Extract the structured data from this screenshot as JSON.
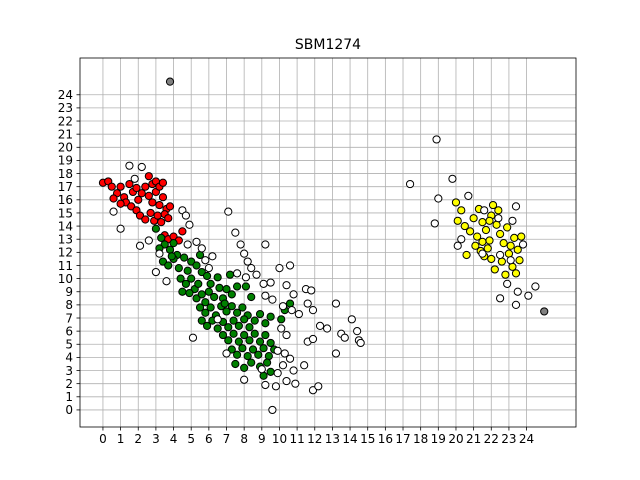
{
  "chart_data": {
    "type": "scatter",
    "title": "SBM1274",
    "xlabel": "",
    "ylabel": "",
    "xlim": [
      -1.3,
      26.8
    ],
    "ylim": [
      -1.3,
      26.8
    ],
    "xticks": [
      "0",
      "1",
      "2",
      "3",
      "4",
      "5",
      "6",
      "7",
      "8",
      "9",
      "10",
      "11",
      "12",
      "13",
      "14",
      "15",
      "16",
      "17",
      "18",
      "19",
      "20",
      "21",
      "22",
      "23",
      "24"
    ],
    "yticks": [
      "0",
      "1",
      "2",
      "3",
      "4",
      "5",
      "6",
      "7",
      "8",
      "9",
      "10",
      "11",
      "12",
      "13",
      "14",
      "15",
      "16",
      "17",
      "18",
      "19",
      "20",
      "21",
      "22",
      "23",
      "24"
    ],
    "grid": true,
    "colors": {
      "red": "#ff0000",
      "green": "#008000",
      "yellow": "#ffff00",
      "white": "#ffffff",
      "gray": "#808080",
      "edge": "#000000",
      "grid": "#b0b0b0"
    },
    "series": [
      {
        "color": "red",
        "points": [
          [
            0,
            17.3
          ],
          [
            0.3,
            17.4
          ],
          [
            0.5,
            17
          ],
          [
            0.8,
            16.5
          ],
          [
            1,
            17
          ],
          [
            1.2,
            16.2
          ],
          [
            1.5,
            17.2
          ],
          [
            1.7,
            16.6
          ],
          [
            1.3,
            15.8
          ],
          [
            1.6,
            15.5
          ],
          [
            1.9,
            15.2
          ],
          [
            2,
            16
          ],
          [
            2.2,
            16.5
          ],
          [
            2.4,
            17
          ],
          [
            2.6,
            16.3
          ],
          [
            2.8,
            15.8
          ],
          [
            3,
            16.6
          ],
          [
            3.2,
            15.6
          ],
          [
            3.4,
            16.2
          ],
          [
            3.6,
            15.3
          ],
          [
            3.8,
            15.5
          ],
          [
            2.1,
            14.8
          ],
          [
            2.4,
            14.5
          ],
          [
            2.7,
            15
          ],
          [
            2.9,
            14.4
          ],
          [
            3.1,
            14.8
          ],
          [
            3.3,
            14.3
          ],
          [
            3.5,
            14.9
          ],
          [
            3.7,
            14.6
          ],
          [
            2.8,
            17.2
          ],
          [
            3,
            17.4
          ],
          [
            3.2,
            17
          ],
          [
            2.6,
            17.8
          ],
          [
            3.4,
            17.3
          ],
          [
            1.9,
            16.9
          ],
          [
            1,
            15.7
          ],
          [
            0.6,
            16.1
          ],
          [
            3.5,
            13.3
          ],
          [
            3.7,
            13
          ],
          [
            4,
            13.2
          ],
          [
            4.3,
            12.9
          ],
          [
            4.5,
            13.6
          ]
        ]
      },
      {
        "color": "green",
        "points": [
          [
            3,
            13.8
          ],
          [
            3.3,
            13.1
          ],
          [
            3.5,
            12.6
          ],
          [
            3.8,
            12.2
          ],
          [
            4,
            12.7
          ],
          [
            4.2,
            11.8
          ],
          [
            3.4,
            11.3
          ],
          [
            3.7,
            11
          ],
          [
            4,
            11.5
          ],
          [
            4.3,
            10.8
          ],
          [
            4.6,
            11.6
          ],
          [
            4.8,
            10.6
          ],
          [
            5,
            11.3
          ],
          [
            5.3,
            11
          ],
          [
            5.5,
            11.8
          ],
          [
            4.4,
            10
          ],
          [
            4.7,
            9.6
          ],
          [
            5,
            10
          ],
          [
            5.2,
            9.2
          ],
          [
            5.4,
            9.6
          ],
          [
            5.6,
            10.5
          ],
          [
            5.9,
            10.2
          ],
          [
            6.1,
            9.6
          ],
          [
            4.5,
            9
          ],
          [
            4.9,
            8.9
          ],
          [
            5.3,
            8.5
          ],
          [
            5.6,
            8.8
          ],
          [
            5.8,
            8.2
          ],
          [
            6,
            9
          ],
          [
            6.3,
            8.6
          ],
          [
            6.6,
            9.3
          ],
          [
            6.8,
            8.5
          ],
          [
            7,
            9.2
          ],
          [
            7.3,
            8.8
          ],
          [
            7.6,
            9.4
          ],
          [
            5.5,
            7.8
          ],
          [
            5.8,
            7.4
          ],
          [
            6.1,
            7.8
          ],
          [
            6.4,
            7.2
          ],
          [
            6.7,
            7.9
          ],
          [
            7,
            7.5
          ],
          [
            7.3,
            7.9
          ],
          [
            7.6,
            7.4
          ],
          [
            7.9,
            7.8
          ],
          [
            8.2,
            7.2
          ],
          [
            5.6,
            6.8
          ],
          [
            5.9,
            6.4
          ],
          [
            6.2,
            6.8
          ],
          [
            6.5,
            6.2
          ],
          [
            6.8,
            6.7
          ],
          [
            7.1,
            6.3
          ],
          [
            7.4,
            6.8
          ],
          [
            7.7,
            6.4
          ],
          [
            8,
            6.9
          ],
          [
            8.3,
            6.3
          ],
          [
            8.6,
            6.8
          ],
          [
            8.9,
            7.3
          ],
          [
            9.2,
            6.6
          ],
          [
            9.5,
            7.1
          ],
          [
            6.8,
            5.7
          ],
          [
            7.1,
            5.3
          ],
          [
            7.4,
            5.8
          ],
          [
            7.7,
            5.2
          ],
          [
            8,
            5.7
          ],
          [
            8.3,
            5.3
          ],
          [
            8.6,
            5.8
          ],
          [
            8.9,
            5.2
          ],
          [
            9.2,
            5.7
          ],
          [
            9.5,
            5.1
          ],
          [
            7.3,
            4.6
          ],
          [
            7.6,
            4.2
          ],
          [
            7.9,
            4.7
          ],
          [
            8.2,
            4.1
          ],
          [
            8.5,
            4.6
          ],
          [
            8.8,
            4.2
          ],
          [
            9.1,
            4.7
          ],
          [
            9.4,
            4.1
          ],
          [
            9.7,
            4.6
          ],
          [
            7.5,
            3.5
          ],
          [
            8,
            3.2
          ],
          [
            8.4,
            3.6
          ],
          [
            8.9,
            3.3
          ],
          [
            9.3,
            3.6
          ],
          [
            9.1,
            2.6
          ],
          [
            9.5,
            2.9
          ],
          [
            10.3,
            7.6
          ],
          [
            10.6,
            8.1
          ],
          [
            10.1,
            6.9
          ],
          [
            6.9,
            8.1
          ],
          [
            7.2,
            10.3
          ],
          [
            6.5,
            10.1
          ],
          [
            8.1,
            9.4
          ],
          [
            8.4,
            8.6
          ],
          [
            3.2,
            12.3
          ],
          [
            3.9,
            11.7
          ]
        ]
      },
      {
        "color": "yellow",
        "points": [
          [
            20,
            15.8
          ],
          [
            20.3,
            15.2
          ],
          [
            20.1,
            14.4
          ],
          [
            20.5,
            14
          ],
          [
            20.8,
            13.6
          ],
          [
            21,
            14.6
          ],
          [
            21.2,
            13.2
          ],
          [
            21.3,
            15.3
          ],
          [
            21.5,
            14.3
          ],
          [
            21.7,
            13.7
          ],
          [
            21.9,
            12.9
          ],
          [
            22,
            14.8
          ],
          [
            22.1,
            15.6
          ],
          [
            22.3,
            14.1
          ],
          [
            22.5,
            13.4
          ],
          [
            22.7,
            12.7
          ],
          [
            22.9,
            13.9
          ],
          [
            23.1,
            12.5
          ],
          [
            23.3,
            13.1
          ],
          [
            23.5,
            12.2
          ],
          [
            23.7,
            13.2
          ],
          [
            21.1,
            12.5
          ],
          [
            21.4,
            12.1
          ],
          [
            21.6,
            11.7
          ],
          [
            21.8,
            12.3
          ],
          [
            22,
            11.5
          ],
          [
            22.2,
            10.7
          ],
          [
            22.6,
            11.3
          ],
          [
            22.8,
            10.3
          ],
          [
            23,
            11.9
          ],
          [
            23.2,
            10.9
          ],
          [
            23.4,
            10.4
          ],
          [
            23.6,
            11.4
          ],
          [
            21.5,
            12.8
          ],
          [
            20.6,
            11.8
          ],
          [
            22.4,
            15.2
          ],
          [
            21.9,
            14.4
          ]
        ]
      },
      {
        "color": "white",
        "points": [
          [
            1.5,
            18.6
          ],
          [
            2.2,
            18.5
          ],
          [
            1.8,
            17.6
          ],
          [
            0.6,
            15.1
          ],
          [
            1,
            13.8
          ],
          [
            2.1,
            12.5
          ],
          [
            2.6,
            12.9
          ],
          [
            3,
            10.5
          ],
          [
            3.2,
            11.9
          ],
          [
            3.6,
            9.8
          ],
          [
            4.5,
            15.2
          ],
          [
            4.7,
            14.8
          ],
          [
            4.9,
            14.1
          ],
          [
            4.8,
            12.6
          ],
          [
            5.3,
            12.8
          ],
          [
            5.6,
            12.3
          ],
          [
            5.8,
            11.4
          ],
          [
            6.2,
            11.7
          ],
          [
            6,
            10.8
          ],
          [
            7.1,
            15.1
          ],
          [
            7.5,
            13.5
          ],
          [
            7.8,
            12.6
          ],
          [
            8,
            11.9
          ],
          [
            8.2,
            11.3
          ],
          [
            8.4,
            10.8
          ],
          [
            7.6,
            10.4
          ],
          [
            8.1,
            10.1
          ],
          [
            9.2,
            12.6
          ],
          [
            8.7,
            10.3
          ],
          [
            9.1,
            9.6
          ],
          [
            9.5,
            9.7
          ],
          [
            10,
            10.8
          ],
          [
            10.6,
            11
          ],
          [
            10.4,
            9.5
          ],
          [
            10.8,
            8.8
          ],
          [
            11.5,
            9.2
          ],
          [
            11.8,
            9.1
          ],
          [
            9.2,
            8.7
          ],
          [
            9.6,
            8.4
          ],
          [
            10.2,
            7.9
          ],
          [
            10.7,
            7.6
          ],
          [
            11.1,
            7.3
          ],
          [
            11.6,
            8.1
          ],
          [
            11.9,
            7.6
          ],
          [
            12.3,
            6.4
          ],
          [
            12.7,
            6.2
          ],
          [
            13.2,
            8.1
          ],
          [
            13.5,
            5.8
          ],
          [
            13.7,
            5.5
          ],
          [
            14.1,
            6.9
          ],
          [
            14.4,
            6
          ],
          [
            14.5,
            5.3
          ],
          [
            14.6,
            5.1
          ],
          [
            13.2,
            4.3
          ],
          [
            11.6,
            5.2
          ],
          [
            11.9,
            5.4
          ],
          [
            10.1,
            6.2
          ],
          [
            10.4,
            5.7
          ],
          [
            9.9,
            4.5
          ],
          [
            10.3,
            4.3
          ],
          [
            10.6,
            3.9
          ],
          [
            10.2,
            3.4
          ],
          [
            10.8,
            3
          ],
          [
            11.4,
            3.4
          ],
          [
            10.9,
            2
          ],
          [
            10.4,
            2.2
          ],
          [
            9.8,
            1.8
          ],
          [
            9.2,
            1.9
          ],
          [
            9.9,
            2.8
          ],
          [
            9,
            3.1
          ],
          [
            8,
            2.3
          ],
          [
            11.9,
            1.5
          ],
          [
            12.2,
            1.8
          ],
          [
            9.6,
            0
          ],
          [
            5.1,
            5.5
          ],
          [
            6.5,
            6.9
          ],
          [
            7,
            4.3
          ],
          [
            17.4,
            17.2
          ],
          [
            18.9,
            20.6
          ],
          [
            18.8,
            14.2
          ],
          [
            19,
            16.1
          ],
          [
            19.8,
            17.6
          ],
          [
            20.1,
            12.5
          ],
          [
            20.3,
            13
          ],
          [
            20.7,
            16.3
          ],
          [
            21.6,
            15.2
          ],
          [
            22.4,
            14.6
          ],
          [
            23.2,
            14.4
          ],
          [
            23.4,
            15.5
          ],
          [
            23.1,
            11.4
          ],
          [
            22.5,
            8.5
          ],
          [
            23.4,
            8
          ],
          [
            23.5,
            9
          ],
          [
            24.1,
            8.7
          ],
          [
            24.5,
            9.4
          ],
          [
            22.5,
            11.8
          ],
          [
            22.9,
            9.6
          ],
          [
            23.8,
            12.6
          ],
          [
            21.5,
            11.9
          ]
        ]
      },
      {
        "color": "gray",
        "points": [
          [
            3.8,
            25
          ],
          [
            25,
            7.5
          ]
        ]
      }
    ]
  }
}
